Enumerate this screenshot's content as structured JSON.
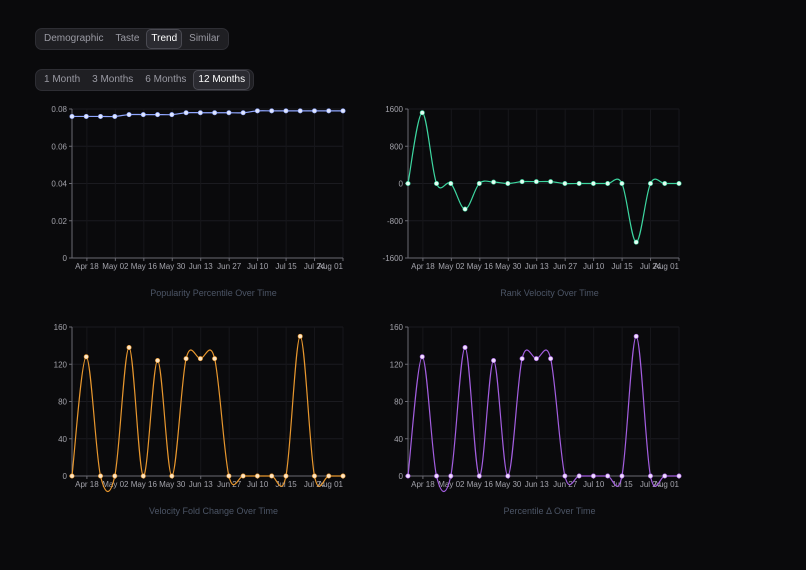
{
  "view_tabs": {
    "items": [
      {
        "label": "Demographic",
        "active": false
      },
      {
        "label": "Taste",
        "active": false
      },
      {
        "label": "Trend",
        "active": true
      },
      {
        "label": "Similar",
        "active": false
      }
    ]
  },
  "range_tabs": {
    "items": [
      {
        "label": "1 Month",
        "active": false
      },
      {
        "label": "3 Months",
        "active": false
      },
      {
        "label": "6 Months",
        "active": false
      },
      {
        "label": "12 Months",
        "active": true
      }
    ]
  },
  "chart_data": [
    {
      "type": "line",
      "title": "Popularity Percentile Over Time",
      "color": "#8fa6ff",
      "point_color": "#dfe6ff",
      "categories": [
        "Apr 18",
        "May 02",
        "May 16",
        "May 30",
        "Jun 13",
        "Jun 27",
        "Jul 10",
        "Jul 15",
        "Jul 24",
        "Aug 01"
      ],
      "x": [
        0,
        1,
        2,
        3,
        4,
        5,
        6,
        7,
        8,
        9,
        10,
        11,
        12,
        13,
        14,
        15,
        16,
        17,
        18,
        19
      ],
      "values": [
        0.076,
        0.076,
        0.076,
        0.076,
        0.077,
        0.077,
        0.077,
        0.077,
        0.078,
        0.078,
        0.078,
        0.078,
        0.078,
        0.079,
        0.079,
        0.079,
        0.079,
        0.079,
        0.079,
        0.079
      ],
      "yticks": [
        0,
        0.02,
        0.04,
        0.06,
        0.08
      ],
      "ytick_labels": [
        "0",
        "0.02",
        "0.04",
        "0.06",
        "0.08"
      ],
      "ylim": [
        0,
        0.08
      ],
      "grid": true
    },
    {
      "type": "line",
      "title": "Rank Velocity Over Time",
      "color": "#3dd6a0",
      "point_color": "#e6fff4",
      "categories": [
        "Apr 18",
        "May 02",
        "May 16",
        "May 30",
        "Jun 13",
        "Jun 27",
        "Jul 10",
        "Jul 15",
        "Jul 24",
        "Aug 01"
      ],
      "x": [
        0,
        1,
        2,
        3,
        4,
        5,
        6,
        7,
        8,
        9,
        10,
        11,
        12,
        13,
        14,
        15,
        16,
        17,
        18,
        19
      ],
      "values": [
        0,
        1520,
        0,
        0,
        -550,
        0,
        30,
        0,
        40,
        40,
        40,
        0,
        0,
        0,
        0,
        0,
        -1260,
        0,
        0,
        0
      ],
      "yticks": [
        -1600,
        -800,
        0,
        800,
        1600
      ],
      "ytick_labels": [
        "-1600",
        "-800",
        "0",
        "800",
        "1600"
      ],
      "ylim": [
        -1600,
        1600
      ],
      "grid": true
    },
    {
      "type": "line",
      "title": "Velocity Fold Change Over Time",
      "color": "#e8972e",
      "point_color": "#ffe6c4",
      "categories": [
        "Apr 18",
        "May 02",
        "May 16",
        "May 30",
        "Jun 13",
        "Jun 27",
        "Jul 10",
        "Jul 15",
        "Jul 24",
        "Aug 01"
      ],
      "x": [
        0,
        1,
        2,
        3,
        4,
        5,
        6,
        7,
        8,
        9,
        10,
        11,
        12,
        13,
        14,
        15,
        16,
        17,
        18,
        19
      ],
      "values": [
        0,
        128,
        0,
        0,
        138,
        0,
        124,
        0,
        126,
        126,
        126,
        0,
        0,
        0,
        0,
        0,
        150,
        0,
        0,
        0
      ],
      "yticks": [
        0,
        40,
        80,
        120,
        160
      ],
      "ytick_labels": [
        "0",
        "40",
        "80",
        "120",
        "160"
      ],
      "ylim": [
        0,
        160
      ],
      "grid": true
    },
    {
      "type": "line",
      "title": "Percentile Δ Over Time",
      "color": "#a35ee0",
      "point_color": "#f0dcff",
      "categories": [
        "Apr 18",
        "May 02",
        "May 16",
        "May 30",
        "Jun 13",
        "Jun 27",
        "Jul 10",
        "Jul 15",
        "Jul 24",
        "Aug 01"
      ],
      "x": [
        0,
        1,
        2,
        3,
        4,
        5,
        6,
        7,
        8,
        9,
        10,
        11,
        12,
        13,
        14,
        15,
        16,
        17,
        18,
        19
      ],
      "values": [
        0,
        128,
        0,
        0,
        138,
        0,
        124,
        0,
        126,
        126,
        126,
        0,
        0,
        0,
        0,
        0,
        150,
        0,
        0,
        0
      ],
      "yticks": [
        0,
        40,
        80,
        120,
        160
      ],
      "ytick_labels": [
        "0",
        "40",
        "80",
        "120",
        "160"
      ],
      "ylim": [
        0,
        160
      ],
      "grid": true
    }
  ]
}
